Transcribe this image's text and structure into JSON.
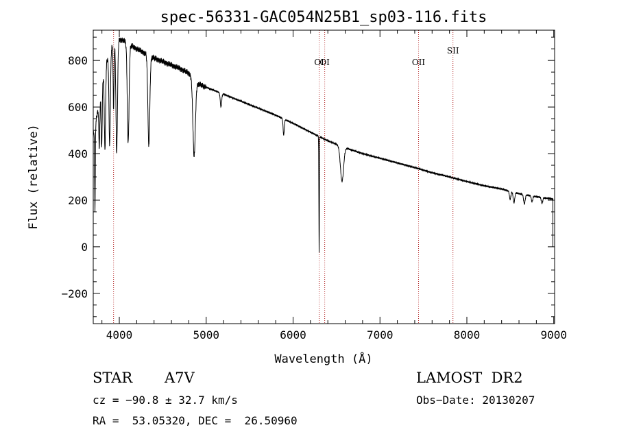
{
  "chart_data": {
    "type": "line",
    "title": "spec-56331-GAC054N25B1_sp03-116.fits",
    "xlabel": "Wavelength (Å)",
    "ylabel": "Flux (relative)",
    "xlim": [
      3700,
      9010
    ],
    "ylim": [
      -330,
      930
    ],
    "x_ticks": [
      4000,
      5000,
      6000,
      7000,
      8000,
      9000
    ],
    "y_ticks": [
      -200,
      0,
      200,
      400,
      600,
      800
    ],
    "grid": false,
    "series": [
      {
        "continuum": [
          [
            3700,
            480
          ],
          [
            3760,
            600
          ],
          [
            3800,
            700
          ],
          [
            3850,
            790
          ],
          [
            3900,
            850
          ],
          [
            3950,
            880
          ],
          [
            4000,
            890
          ],
          [
            4050,
            885
          ],
          [
            4100,
            870
          ],
          [
            4200,
            850
          ],
          [
            4300,
            830
          ],
          [
            4400,
            810
          ],
          [
            4500,
            795
          ],
          [
            4600,
            780
          ],
          [
            4700,
            765
          ],
          [
            4800,
            745
          ],
          [
            4900,
            700
          ],
          [
            5000,
            685
          ],
          [
            5200,
            655
          ],
          [
            5400,
            625
          ],
          [
            5600,
            595
          ],
          [
            5800,
            565
          ],
          [
            6000,
            530
          ],
          [
            6200,
            492
          ],
          [
            6400,
            455
          ],
          [
            6600,
            425
          ],
          [
            6800,
            400
          ],
          [
            7000,
            380
          ],
          [
            7200,
            360
          ],
          [
            7400,
            340
          ],
          [
            7600,
            318
          ],
          [
            7800,
            300
          ],
          [
            8000,
            280
          ],
          [
            8200,
            262
          ],
          [
            8400,
            248
          ],
          [
            8600,
            228
          ],
          [
            8800,
            215
          ],
          [
            8990,
            205
          ]
        ],
        "absorption_lines": [
          {
            "x": 3720,
            "depth": 360,
            "width": 4
          },
          {
            "x": 3770,
            "depth": 200,
            "width": 6
          },
          {
            "x": 3797,
            "depth": 270,
            "width": 6
          },
          {
            "x": 3835,
            "depth": 350,
            "width": 7
          },
          {
            "x": 3889,
            "depth": 400,
            "width": 8
          },
          {
            "x": 3934,
            "depth": 280,
            "width": 5
          },
          {
            "x": 3970,
            "depth": 480,
            "width": 9
          },
          {
            "x": 4102,
            "depth": 420,
            "width": 10
          },
          {
            "x": 4340,
            "depth": 390,
            "width": 11
          },
          {
            "x": 4861,
            "depth": 330,
            "width": 14
          },
          {
            "x": 5170,
            "depth": 60,
            "width": 8
          },
          {
            "x": 5892,
            "depth": 70,
            "width": 7
          },
          {
            "x": 6300,
            "depth": 500,
            "width": 3
          },
          {
            "x": 6563,
            "depth": 150,
            "width": 18
          },
          {
            "x": 8498,
            "depth": 35,
            "width": 8
          },
          {
            "x": 8542,
            "depth": 45,
            "width": 9
          },
          {
            "x": 8662,
            "depth": 40,
            "width": 9
          },
          {
            "x": 8750,
            "depth": 25,
            "width": 8
          },
          {
            "x": 8865,
            "depth": 25,
            "width": 8
          }
        ],
        "edge_drop": {
          "x": 8990,
          "y": 0
        }
      }
    ],
    "reference_lines": [
      {
        "x": 3934,
        "label": ""
      },
      {
        "x": 6300,
        "label": "OI"
      },
      {
        "x": 6364,
        "label": "OI"
      },
      {
        "x": 7444,
        "label": "OII"
      },
      {
        "x": 7840,
        "label": "SII"
      }
    ]
  },
  "info": {
    "obj_class": "STAR",
    "subclass": "A7V",
    "survey": "LAMOST  DR2",
    "cz": "cz = −90.8 ± 32.7 km/s",
    "obs_date": "Obs−Date: 20130207",
    "coords": "RA =  53.05320, DEC =  26.50960"
  }
}
